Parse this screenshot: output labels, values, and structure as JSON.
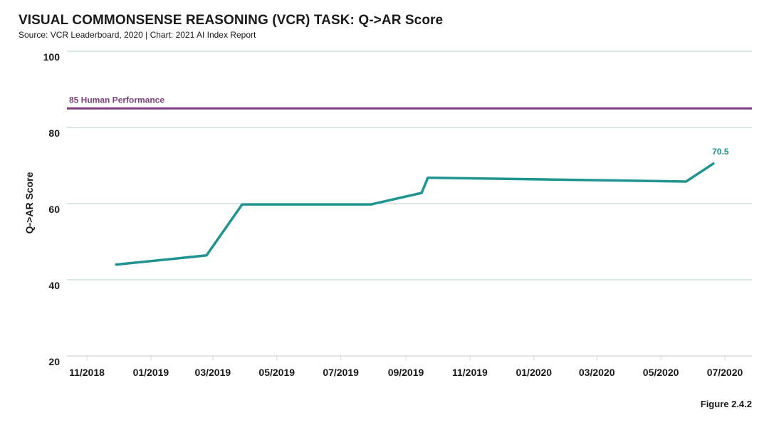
{
  "header": {
    "title": "VISUAL COMMONSENSE REASONING (VCR) TASK: Q->AR Score",
    "source": "Source: VCR Leaderboard, 2020 | Chart: 2021 AI Index Report"
  },
  "footer": {
    "figure_label": "Figure 2.4.2"
  },
  "chart_data": {
    "type": "line",
    "title": "VISUAL COMMONSENSE REASONING (VCR) TASK: Q->AR Score",
    "subtitle": "Source: VCR Leaderboard, 2020 | Chart: 2021 AI Index Report",
    "xlabel": "",
    "ylabel": "Q->AR Score",
    "x_tick_labels": [
      "11/2018",
      "01/2019",
      "03/2019",
      "05/2019",
      "07/2019",
      "09/2019",
      "11/2019",
      "01/2020",
      "03/2020",
      "05/2020",
      "07/2020"
    ],
    "y_ticks": [
      20,
      40,
      60,
      80,
      100
    ],
    "ylim": [
      20,
      100
    ],
    "grid": true,
    "legend": "none",
    "series": [
      {
        "color": "#1f9490",
        "points": [
          {
            "x": "2018-11-29",
            "y": 44.0
          },
          {
            "x": "2019-02-23",
            "y": 46.4
          },
          {
            "x": "2019-03-29",
            "y": 59.8
          },
          {
            "x": "2019-07-30",
            "y": 59.8
          },
          {
            "x": "2019-09-16",
            "y": 62.8
          },
          {
            "x": "2019-09-22",
            "y": 66.8
          },
          {
            "x": "2020-05-25",
            "y": 65.8
          },
          {
            "x": "2020-06-20",
            "y": 70.5
          }
        ],
        "data_labels": [
          {
            "x": "2020-06-20",
            "text": "70.5"
          }
        ]
      }
    ],
    "reference_lines": [
      {
        "y": 85,
        "label": "85 Human Performance",
        "color": "#7b3f7e"
      }
    ]
  }
}
